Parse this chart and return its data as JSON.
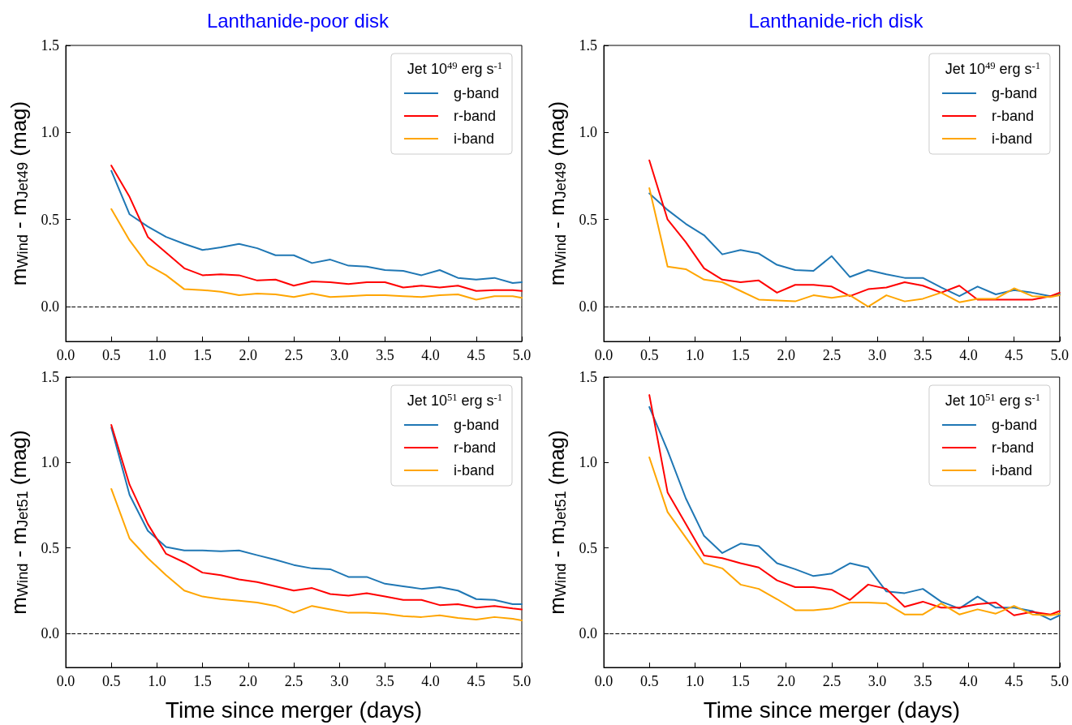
{
  "chart_data": [
    {
      "type": "line",
      "title": "Lanthanide-poor disk",
      "ylabel": "m$_{Wind}$ - m$_{Jet49}$ (mag)",
      "legend_title": "Jet 10$^{49}$ erg s$^{-1}$",
      "legend": "top right",
      "x": [
        0.5,
        0.7,
        0.9,
        1.1,
        1.3,
        1.5,
        1.7,
        1.9,
        2.1,
        2.3,
        2.5,
        2.7,
        2.9,
        3.1,
        3.3,
        3.5,
        3.7,
        3.9,
        4.1,
        4.3,
        4.5,
        4.7,
        4.9,
        5.0
      ],
      "xlim": [
        0,
        5
      ],
      "ylim": [
        -0.2,
        1.5
      ],
      "xticks": [
        {
          "value": 0,
          "label": "0.0"
        },
        {
          "value": 0.5,
          "label": "0.5"
        },
        {
          "value": 1,
          "label": "1.0"
        },
        {
          "value": 1.5,
          "label": "1.5"
        },
        {
          "value": 2,
          "label": "2.0"
        },
        {
          "value": 2.5,
          "label": "2.5"
        },
        {
          "value": 3,
          "label": "3.0"
        },
        {
          "value": 3.5,
          "label": "3.5"
        },
        {
          "value": 4,
          "label": "4.0"
        },
        {
          "value": 4.5,
          "label": "4.5"
        },
        {
          "value": 5,
          "label": "5.0"
        }
      ],
      "yticks": [
        {
          "value": 0,
          "label": "0.0"
        },
        {
          "value": 0.5,
          "label": "0.5"
        },
        {
          "value": 1,
          "label": "1.0"
        },
        {
          "value": 1.5,
          "label": "1.5"
        }
      ],
      "ref_lines": [
        {
          "axis": "y",
          "value": 0,
          "color": "#000000",
          "line_style": "dashed"
        }
      ],
      "series": [
        {
          "name": "g-band",
          "color": "#1f77b4",
          "values": [
            0.78,
            0.53,
            0.46,
            0.4,
            0.36,
            0.325,
            0.34,
            0.36,
            0.335,
            0.295,
            0.295,
            0.25,
            0.27,
            0.235,
            0.23,
            0.21,
            0.205,
            0.18,
            0.21,
            0.165,
            0.155,
            0.165,
            0.135,
            0.14
          ]
        },
        {
          "name": "r-band",
          "color": "#ff0000",
          "values": [
            0.81,
            0.63,
            0.4,
            0.31,
            0.22,
            0.18,
            0.185,
            0.18,
            0.15,
            0.155,
            0.12,
            0.145,
            0.14,
            0.13,
            0.14,
            0.14,
            0.11,
            0.12,
            0.11,
            0.12,
            0.09,
            0.095,
            0.095,
            0.09
          ]
        },
        {
          "name": "i-band",
          "color": "#ffa500",
          "values": [
            0.56,
            0.38,
            0.24,
            0.18,
            0.1,
            0.095,
            0.085,
            0.065,
            0.075,
            0.07,
            0.055,
            0.075,
            0.055,
            0.06,
            0.065,
            0.065,
            0.06,
            0.055,
            0.065,
            0.07,
            0.04,
            0.06,
            0.06,
            0.05
          ]
        }
      ]
    },
    {
      "type": "line",
      "title": "Lanthanide-rich disk",
      "ylabel": "m$_{Wind}$ - m$_{Jet49}$ (mag)",
      "legend_title": "Jet 10$^{49}$ erg s$^{-1}$",
      "legend": "top right",
      "x": [
        0.5,
        0.7,
        0.9,
        1.1,
        1.3,
        1.5,
        1.7,
        1.9,
        2.1,
        2.3,
        2.5,
        2.7,
        2.9,
        3.1,
        3.3,
        3.5,
        3.7,
        3.9,
        4.1,
        4.3,
        4.5,
        4.7,
        4.9,
        5.0
      ],
      "xlim": [
        0,
        5
      ],
      "ylim": [
        -0.2,
        1.5
      ],
      "xticks": [
        {
          "value": 0,
          "label": "0.0"
        },
        {
          "value": 0.5,
          "label": "0.5"
        },
        {
          "value": 1,
          "label": "1.0"
        },
        {
          "value": 1.5,
          "label": "1.5"
        },
        {
          "value": 2,
          "label": "2.0"
        },
        {
          "value": 2.5,
          "label": "2.5"
        },
        {
          "value": 3,
          "label": "3.0"
        },
        {
          "value": 3.5,
          "label": "3.5"
        },
        {
          "value": 4,
          "label": "4.0"
        },
        {
          "value": 4.5,
          "label": "4.5"
        },
        {
          "value": 5,
          "label": "5.0"
        }
      ],
      "yticks": [
        {
          "value": 0,
          "label": "0.0"
        },
        {
          "value": 0.5,
          "label": "0.5"
        },
        {
          "value": 1,
          "label": "1.0"
        },
        {
          "value": 1.5,
          "label": "1.5"
        }
      ],
      "ref_lines": [
        {
          "axis": "y",
          "value": 0,
          "color": "#000000",
          "line_style": "dashed"
        }
      ],
      "series": [
        {
          "name": "g-band",
          "color": "#1f77b4",
          "values": [
            0.65,
            0.555,
            0.475,
            0.41,
            0.3,
            0.325,
            0.305,
            0.24,
            0.21,
            0.205,
            0.29,
            0.17,
            0.21,
            0.185,
            0.165,
            0.165,
            0.11,
            0.06,
            0.115,
            0.07,
            0.095,
            0.08,
            0.06,
            0.07
          ]
        },
        {
          "name": "r-band",
          "color": "#ff0000",
          "values": [
            0.84,
            0.5,
            0.37,
            0.22,
            0.155,
            0.14,
            0.15,
            0.08,
            0.125,
            0.125,
            0.115,
            0.06,
            0.1,
            0.11,
            0.14,
            0.12,
            0.08,
            0.12,
            0.04,
            0.04,
            0.04,
            0.04,
            0.06,
            0.08
          ]
        },
        {
          "name": "i-band",
          "color": "#ffa500",
          "values": [
            0.68,
            0.23,
            0.215,
            0.155,
            0.14,
            0.09,
            0.04,
            0.035,
            0.03,
            0.065,
            0.05,
            0.065,
            0.0,
            0.065,
            0.03,
            0.045,
            0.08,
            0.025,
            0.045,
            0.045,
            0.105,
            0.06,
            0.055,
            0.065
          ]
        }
      ]
    },
    {
      "type": "line",
      "xlabel": "Time since merger (days)",
      "ylabel": "m$_{Wind}$ - m$_{Jet51}$ (mag)",
      "legend_title": "Jet 10$^{51}$ erg s$^{-1}$",
      "legend": "top right",
      "x": [
        0.5,
        0.7,
        0.9,
        1.1,
        1.3,
        1.5,
        1.7,
        1.9,
        2.1,
        2.3,
        2.5,
        2.7,
        2.9,
        3.1,
        3.3,
        3.5,
        3.7,
        3.9,
        4.1,
        4.3,
        4.5,
        4.7,
        4.9,
        5.0
      ],
      "xlim": [
        0,
        5
      ],
      "ylim": [
        -0.2,
        1.5
      ],
      "xticks": [
        {
          "value": 0,
          "label": "0.0"
        },
        {
          "value": 0.5,
          "label": "0.5"
        },
        {
          "value": 1,
          "label": "1.0"
        },
        {
          "value": 1.5,
          "label": "1.5"
        },
        {
          "value": 2,
          "label": "2.0"
        },
        {
          "value": 2.5,
          "label": "2.5"
        },
        {
          "value": 3,
          "label": "3.0"
        },
        {
          "value": 3.5,
          "label": "3.5"
        },
        {
          "value": 4,
          "label": "4.0"
        },
        {
          "value": 4.5,
          "label": "4.5"
        },
        {
          "value": 5,
          "label": "5.0"
        }
      ],
      "yticks": [
        {
          "value": 0,
          "label": "0.0"
        },
        {
          "value": 0.5,
          "label": "0.5"
        },
        {
          "value": 1,
          "label": "1.0"
        },
        {
          "value": 1.5,
          "label": "1.5"
        }
      ],
      "ref_lines": [
        {
          "axis": "y",
          "value": 0,
          "color": "#000000",
          "line_style": "dashed"
        }
      ],
      "series": [
        {
          "name": "g-band",
          "color": "#1f77b4",
          "values": [
            1.205,
            0.81,
            0.6,
            0.505,
            0.485,
            0.485,
            0.48,
            0.485,
            0.457,
            0.43,
            0.4,
            0.38,
            0.375,
            0.33,
            0.33,
            0.29,
            0.275,
            0.26,
            0.27,
            0.25,
            0.2,
            0.195,
            0.17,
            0.17
          ]
        },
        {
          "name": "r-band",
          "color": "#ff0000",
          "values": [
            1.22,
            0.87,
            0.64,
            0.465,
            0.415,
            0.355,
            0.34,
            0.315,
            0.3,
            0.275,
            0.25,
            0.265,
            0.23,
            0.22,
            0.235,
            0.215,
            0.195,
            0.195,
            0.165,
            0.17,
            0.15,
            0.16,
            0.145,
            0.14
          ]
        },
        {
          "name": "i-band",
          "color": "#ffa500",
          "values": [
            0.845,
            0.555,
            0.44,
            0.34,
            0.25,
            0.215,
            0.2,
            0.19,
            0.18,
            0.16,
            0.12,
            0.16,
            0.14,
            0.12,
            0.12,
            0.115,
            0.1,
            0.095,
            0.105,
            0.09,
            0.08,
            0.095,
            0.085,
            0.075
          ]
        }
      ]
    },
    {
      "type": "line",
      "xlabel": "Time since merger (days)",
      "ylabel": "m$_{Wind}$ - m$_{Jet51}$ (mag)",
      "legend_title": "Jet 10$^{51}$ erg s$^{-1}$",
      "legend": "top right",
      "x": [
        0.5,
        0.7,
        0.9,
        1.1,
        1.3,
        1.5,
        1.7,
        1.9,
        2.1,
        2.3,
        2.5,
        2.7,
        2.9,
        3.1,
        3.3,
        3.5,
        3.7,
        3.9,
        4.1,
        4.3,
        4.5,
        4.7,
        4.9,
        5.0
      ],
      "xlim": [
        0,
        5
      ],
      "ylim": [
        -0.2,
        1.5
      ],
      "xticks": [
        {
          "value": 0,
          "label": "0.0"
        },
        {
          "value": 0.5,
          "label": "0.5"
        },
        {
          "value": 1,
          "label": "1.0"
        },
        {
          "value": 1.5,
          "label": "1.5"
        },
        {
          "value": 2,
          "label": "2.0"
        },
        {
          "value": 2.5,
          "label": "2.5"
        },
        {
          "value": 3,
          "label": "3.0"
        },
        {
          "value": 3.5,
          "label": "3.5"
        },
        {
          "value": 4,
          "label": "4.0"
        },
        {
          "value": 4.5,
          "label": "4.5"
        },
        {
          "value": 5,
          "label": "5.0"
        }
      ],
      "yticks": [
        {
          "value": 0,
          "label": "0.0"
        },
        {
          "value": 0.5,
          "label": "0.5"
        },
        {
          "value": 1,
          "label": "1.0"
        },
        {
          "value": 1.5,
          "label": "1.5"
        }
      ],
      "ref_lines": [
        {
          "axis": "y",
          "value": 0,
          "color": "#000000",
          "line_style": "dashed"
        }
      ],
      "series": [
        {
          "name": "g-band",
          "color": "#1f77b4",
          "values": [
            1.325,
            1.07,
            0.79,
            0.57,
            0.47,
            0.525,
            0.51,
            0.41,
            0.375,
            0.335,
            0.35,
            0.41,
            0.385,
            0.245,
            0.235,
            0.26,
            0.185,
            0.145,
            0.215,
            0.15,
            0.15,
            0.13,
            0.08,
            0.105
          ]
        },
        {
          "name": "r-band",
          "color": "#ff0000",
          "values": [
            1.395,
            0.825,
            0.64,
            0.455,
            0.44,
            0.41,
            0.385,
            0.31,
            0.27,
            0.27,
            0.255,
            0.195,
            0.285,
            0.26,
            0.155,
            0.185,
            0.15,
            0.15,
            0.17,
            0.18,
            0.105,
            0.125,
            0.11,
            0.13
          ]
        },
        {
          "name": "i-band",
          "color": "#ffa500",
          "values": [
            1.03,
            0.71,
            0.56,
            0.41,
            0.38,
            0.285,
            0.26,
            0.2,
            0.135,
            0.135,
            0.145,
            0.18,
            0.18,
            0.175,
            0.11,
            0.11,
            0.175,
            0.11,
            0.14,
            0.115,
            0.16,
            0.11,
            0.105,
            0.115
          ]
        }
      ]
    }
  ]
}
